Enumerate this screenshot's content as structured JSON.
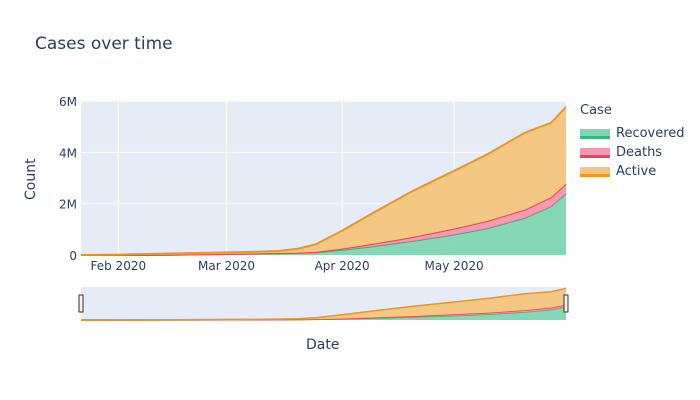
{
  "chart_data": {
    "type": "area",
    "title": "Cases over time",
    "xlabel": "Date",
    "ylabel": "Count",
    "legend_title": "Case",
    "legend_placement": "right",
    "stacked": true,
    "x": [
      "2020-01-22",
      "2020-02-01",
      "2020-02-15",
      "2020-03-01",
      "2020-03-10",
      "2020-03-15",
      "2020-03-20",
      "2020-03-25",
      "2020-04-01",
      "2020-04-10",
      "2020-04-20",
      "2020-05-01",
      "2020-05-10",
      "2020-05-20",
      "2020-05-27",
      "2020-05-31"
    ],
    "ylim": [
      0,
      6000000
    ],
    "yticks": [
      {
        "value": 0,
        "label": "0"
      },
      {
        "value": 2000000,
        "label": "2M"
      },
      {
        "value": 4000000,
        "label": "4M"
      },
      {
        "value": 6000000,
        "label": "6M"
      }
    ],
    "xticks": [
      {
        "value": "2020-02-01",
        "label": "Feb 2020"
      },
      {
        "value": "2020-03-01",
        "label": "Mar 2020"
      },
      {
        "value": "2020-04-01",
        "label": "Apr 2020"
      },
      {
        "value": "2020-05-01",
        "label": "May 2020"
      }
    ],
    "series": [
      {
        "name": "Recovered",
        "color": "#7fd6b2",
        "line": "#3cb37a",
        "values": [
          0,
          1000,
          8000,
          40000,
          60000,
          70000,
          80000,
          100000,
          200000,
          350000,
          550000,
          800000,
          1050000,
          1450000,
          1900000,
          2400000
        ]
      },
      {
        "name": "Deaths",
        "color": "#f796b0",
        "line": "#e8435e",
        "values": [
          0,
          200,
          1500,
          3000,
          4000,
          6000,
          10000,
          20000,
          50000,
          100000,
          150000,
          230000,
          280000,
          320000,
          350000,
          370000
        ]
      },
      {
        "name": "Active",
        "color": "#f5c57e",
        "line": "#f0951e",
        "values": [
          500,
          15000,
          50000,
          60000,
          70000,
          80000,
          150000,
          300000,
          700000,
          1250000,
          1800000,
          2250000,
          2600000,
          3000000,
          2900000,
          3000000
        ]
      }
    ],
    "grid": true,
    "range_slider": true
  }
}
